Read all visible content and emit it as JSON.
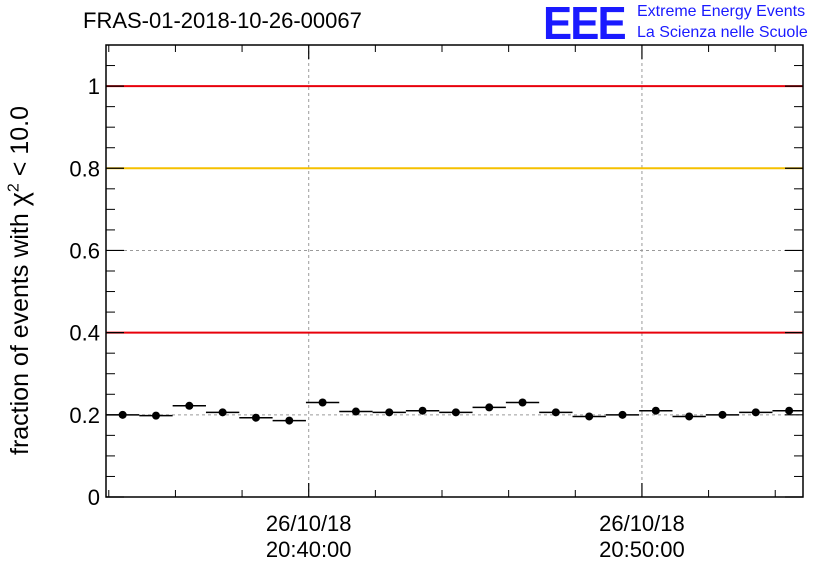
{
  "title": "FRAS-01-2018-10-26-00067",
  "logo": {
    "mark": "EEE",
    "line1": "Extreme Energy Events",
    "line2": "La Scienza nelle Scuole",
    "color": "#1a1aff"
  },
  "chart_data": {
    "type": "scatter",
    "title": "FRAS-01-2018-10-26-00067",
    "xlabel": "",
    "ylabel_prefix": "fraction of events with ",
    "ylabel_symbol": "χ",
    "ylabel_sup": "2",
    "ylabel_suffix": " < 10.0",
    "ylim": [
      0,
      1.1
    ],
    "yticks": [
      {
        "value": 0,
        "label": "0"
      },
      {
        "value": 0.2,
        "label": "0.2"
      },
      {
        "value": 0.4,
        "label": "0.4"
      },
      {
        "value": 0.6,
        "label": "0.6"
      },
      {
        "value": 0.8,
        "label": "0.8"
      },
      {
        "value": 1,
        "label": "1"
      }
    ],
    "xlim": [
      "20:33:55",
      "20:54:50"
    ],
    "xticks": [
      {
        "value": "20:40:00",
        "label_line1": "26/10/18",
        "label_line2": "20:40:00"
      },
      {
        "value": "20:50:00",
        "label_line1": "26/10/18",
        "label_line2": "20:50:00"
      }
    ],
    "grid": true,
    "reference_lines": [
      {
        "y": 1.0,
        "color": "#e8000b"
      },
      {
        "y": 0.8,
        "color": "#f5c000"
      },
      {
        "y": 0.4,
        "color": "#e8000b"
      }
    ],
    "series": [
      {
        "bin_width_s": 60,
        "points": [
          {
            "x": "20:34:25",
            "y": 0.2
          },
          {
            "x": "20:35:25",
            "y": 0.198
          },
          {
            "x": "20:36:25",
            "y": 0.222
          },
          {
            "x": "20:37:25",
            "y": 0.206
          },
          {
            "x": "20:38:25",
            "y": 0.193
          },
          {
            "x": "20:39:25",
            "y": 0.186
          },
          {
            "x": "20:40:25",
            "y": 0.23
          },
          {
            "x": "20:41:25",
            "y": 0.208
          },
          {
            "x": "20:42:25",
            "y": 0.206
          },
          {
            "x": "20:43:25",
            "y": 0.21
          },
          {
            "x": "20:44:25",
            "y": 0.206
          },
          {
            "x": "20:45:25",
            "y": 0.218
          },
          {
            "x": "20:46:25",
            "y": 0.23
          },
          {
            "x": "20:47:25",
            "y": 0.206
          },
          {
            "x": "20:48:25",
            "y": 0.196
          },
          {
            "x": "20:49:25",
            "y": 0.2
          },
          {
            "x": "20:50:25",
            "y": 0.21
          },
          {
            "x": "20:51:25",
            "y": 0.196
          },
          {
            "x": "20:52:25",
            "y": 0.2
          },
          {
            "x": "20:53:25",
            "y": 0.206
          },
          {
            "x": "20:54:25",
            "y": 0.21
          }
        ]
      }
    ]
  }
}
